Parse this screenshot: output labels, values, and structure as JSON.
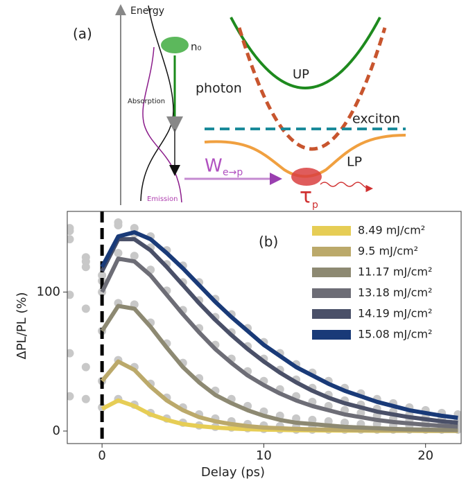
{
  "diagram": {
    "panel_label": "(a)",
    "energy": "Energy",
    "n0": "n₀",
    "absorption": "Absorption",
    "emission": "Emission",
    "photon": "photon",
    "up": "UP",
    "exciton": "exciton",
    "lp": "LP",
    "rate": {
      "symbol": "W",
      "subscript": "e→p"
    },
    "tau": {
      "symbol": "τ",
      "subscript": "p"
    }
  },
  "chart_data": {
    "type": "line",
    "panel_label": "(b)",
    "x_label": "Delay (ps)",
    "y_label": "ΔPL/PL (%)",
    "xlim": [
      -2.15,
      22.2
    ],
    "ylim": [
      -9,
      158
    ],
    "xticks": [
      0,
      10,
      20
    ],
    "yticks": [
      0,
      100
    ],
    "x": [
      -2,
      -1,
      0,
      1,
      2,
      3,
      4,
      5,
      6,
      7,
      8,
      9,
      10,
      11,
      12,
      13,
      14,
      15,
      16,
      17,
      18,
      19,
      20,
      21,
      22
    ],
    "series": [
      {
        "name": "8.49 mJ/cm²",
        "color": "#e6cd55",
        "values": [
          null,
          null,
          16,
          22,
          18,
          12,
          8,
          5,
          3.5,
          2.5,
          1.8,
          1.3,
          1,
          0.8,
          0.6,
          0.5,
          0.4,
          0.3,
          0.3,
          0.2,
          0.2,
          0.2,
          0.1,
          0.1,
          0.1
        ]
      },
      {
        "name": "9.5 mJ/cm²",
        "color": "#bba96a",
        "values": [
          null,
          null,
          36,
          50,
          44,
          32,
          22,
          15,
          10,
          7,
          5,
          3.5,
          2.5,
          2,
          1.5,
          1.2,
          1,
          0.8,
          0.6,
          0.5,
          0.4,
          0.3,
          0.3,
          0.2,
          0.2
        ]
      },
      {
        "name": "11.17 mJ/cm²",
        "color": "#8d8972",
        "values": [
          null,
          null,
          72,
          90,
          88,
          75,
          60,
          46,
          35,
          26,
          20,
          15,
          11,
          8,
          6,
          5,
          4,
          3,
          2.5,
          2,
          1.5,
          1.2,
          1,
          0.8,
          0.7
        ]
      },
      {
        "name": "13.18 mJ/cm²",
        "color": "#6d6d76",
        "values": [
          null,
          null,
          100,
          124,
          122,
          112,
          98,
          84,
          71,
          59,
          49,
          40,
          33,
          27,
          22,
          18,
          15,
          12,
          10,
          8,
          6.5,
          5.5,
          4.5,
          3.8,
          3.2
        ]
      },
      {
        "name": "14.19 mJ/cm²",
        "color": "#4a5068",
        "values": [
          null,
          null,
          115,
          138,
          138,
          130,
          118,
          105,
          92,
          80,
          69,
          59,
          50,
          42,
          35,
          29,
          24,
          20,
          17,
          14,
          12,
          10,
          8.5,
          7,
          6
        ]
      },
      {
        "name": "15.08 mJ/cm²",
        "color": "#193a78",
        "values": [
          null,
          null,
          118,
          140,
          143,
          138,
          128,
          117,
          105,
          93,
          82,
          72,
          62,
          54,
          46,
          40,
          34,
          29,
          25,
          21,
          18,
          15,
          13,
          11,
          9.5
        ]
      }
    ],
    "measured_color": "#c8c8c8",
    "measured": [
      {
        "values": [
          25,
          23,
          17,
          23,
          19,
          13,
          9,
          6,
          4,
          3,
          2.5,
          2,
          1.5,
          1.2,
          1,
          1,
          1,
          1,
          1,
          1,
          1,
          1,
          1,
          1,
          1
        ]
      },
      {
        "values": [
          56,
          46,
          36,
          51,
          46,
          34,
          24,
          17,
          12,
          9,
          7,
          5,
          4,
          3.5,
          3,
          3,
          2.5,
          2.5,
          2,
          2,
          2,
          2,
          2,
          2,
          2
        ]
      },
      {
        "values": [
          98,
          88,
          72,
          92,
          91,
          78,
          63,
          49,
          38,
          29,
          23,
          18,
          14,
          11,
          9,
          8,
          7,
          6,
          5,
          5,
          4,
          4,
          4,
          4,
          4
        ]
      },
      {
        "values": [
          138,
          118,
          100,
          128,
          126,
          116,
          101,
          87,
          74,
          62,
          52,
          43,
          36,
          30,
          25,
          21,
          18,
          15,
          13,
          11,
          9,
          8,
          7,
          6,
          6
        ]
      },
      {
        "values": [
          144,
          122,
          108,
          148,
          142,
          132,
          120,
          107,
          94,
          82,
          71,
          61,
          52,
          44,
          37,
          31,
          26,
          22,
          19,
          16,
          14,
          12,
          10,
          9,
          8
        ]
      },
      {
        "values": [
          146,
          125,
          112,
          150,
          146,
          140,
          130,
          119,
          107,
          95,
          84,
          74,
          64,
          56,
          48,
          42,
          36,
          31,
          27,
          23,
          20,
          17,
          15,
          13,
          12
        ]
      }
    ]
  }
}
